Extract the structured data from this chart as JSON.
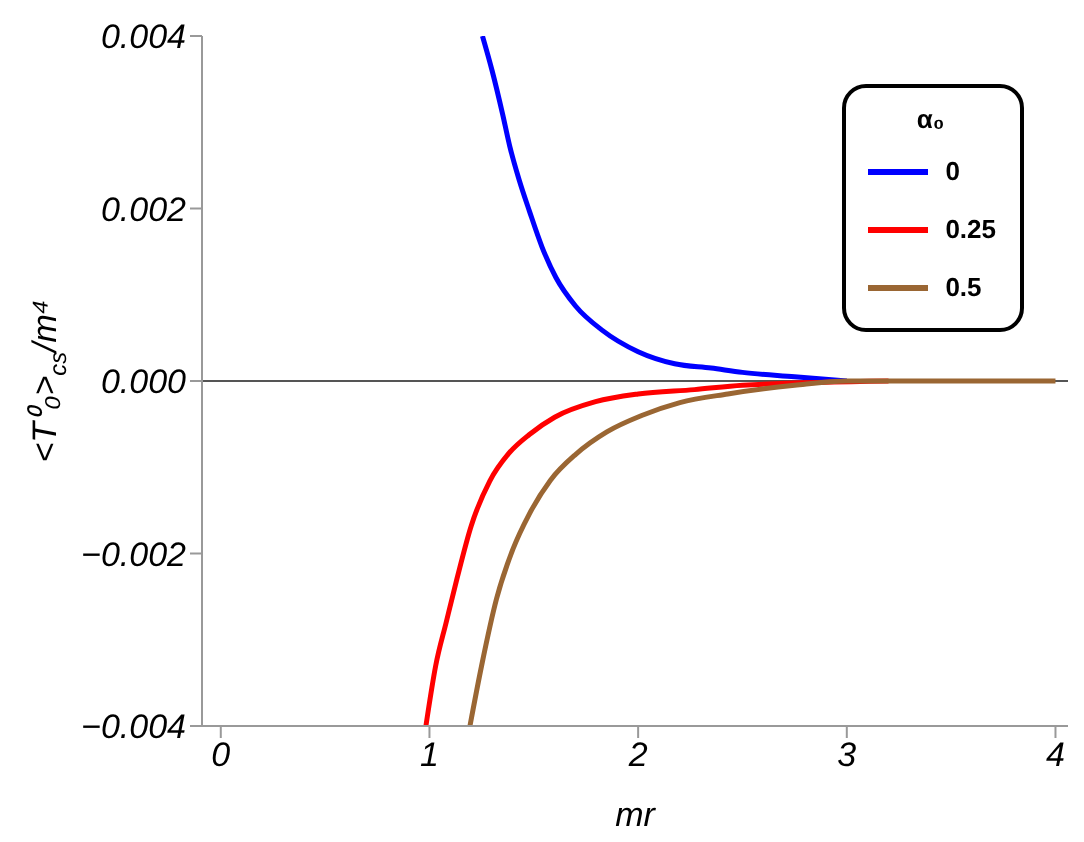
{
  "chart_data": {
    "type": "line",
    "xlabel": "mr",
    "ylabel": "<T⁰₀>$_{cs}$/m⁴",
    "legend_title": "α₀",
    "legend": "top right",
    "grid": false,
    "line_style": "solid",
    "marker": "none",
    "xlim": [
      -0.09,
      4.06
    ],
    "xticks": [
      0,
      1,
      2,
      3,
      4
    ],
    "ylim": [
      -0.004,
      0.004
    ],
    "yticks": [
      {
        "value": -0.004,
        "label": "−0.004"
      },
      {
        "value": -0.002,
        "label": "−0.002"
      },
      {
        "value": 0,
        "label": "0.000"
      },
      {
        "value": 0.002,
        "label": "0.002"
      },
      {
        "value": 0.004,
        "label": "0.004"
      }
    ],
    "ref_lines": [
      {
        "axis": "y",
        "value": 0,
        "color": "#555555"
      }
    ],
    "series": [
      {
        "name": "0",
        "color": "#0000ff",
        "x": [
          1.254,
          1.3,
          1.35,
          1.384,
          1.43,
          1.479,
          1.54,
          1.606,
          1.7,
          1.827,
          2.0,
          2.175,
          2.35,
          2.5,
          2.75,
          3.0
        ],
        "values": [
          0.004,
          0.0036,
          0.0031,
          0.00273,
          0.00233,
          0.00197,
          0.00155,
          0.0012,
          0.00087,
          0.00059,
          0.00034,
          0.0002,
          0.00015,
          0.0001,
          5e-05,
          0
        ]
      },
      {
        "name": "0.25",
        "color": "#ff0000",
        "x": [
          0.983,
          1.03,
          1.08,
          1.131,
          1.2,
          1.289,
          1.38,
          1.479,
          1.6,
          1.796,
          2.0,
          2.27,
          2.5,
          3.2
        ],
        "values": [
          -0.004,
          -0.0033,
          -0.0028,
          -0.0023,
          -0.00168,
          -0.00116,
          -0.00084,
          -0.00062,
          -0.00042,
          -0.00024,
          -0.00015,
          -0.0001,
          -5e-05,
          0
        ]
      },
      {
        "name": "0.5",
        "color": "#9a6633",
        "x": [
          1.194,
          1.25,
          1.321,
          1.4,
          1.479,
          1.58,
          1.701,
          1.85,
          2.017,
          2.2,
          2.43,
          2.75,
          3.0,
          3.5,
          4.0
        ],
        "values": [
          -0.004,
          -0.0033,
          -0.00253,
          -0.00195,
          -0.00154,
          -0.00115,
          -0.00085,
          -0.00059,
          -0.0004,
          -0.00025,
          -0.00015,
          -5e-05,
          0,
          0,
          0
        ]
      }
    ]
  }
}
